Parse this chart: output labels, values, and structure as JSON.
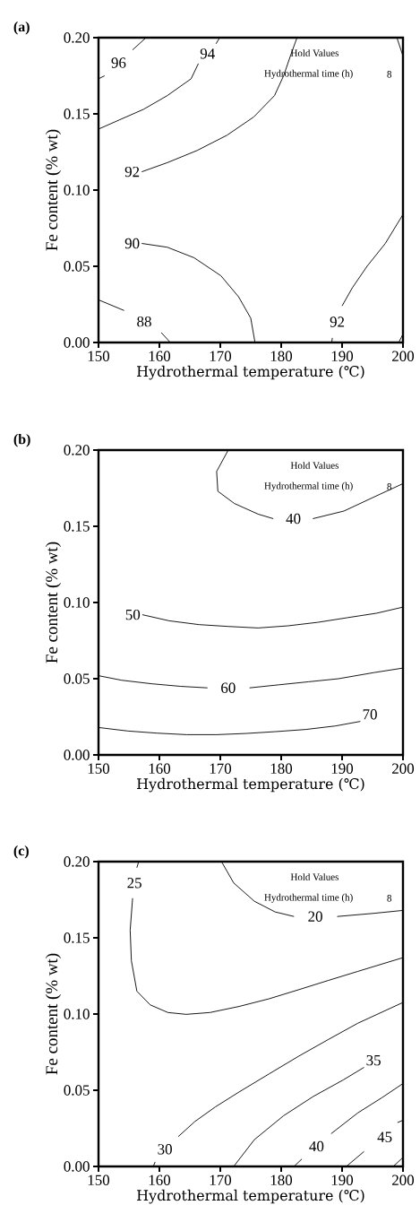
{
  "chart_data": [
    {
      "type": "line",
      "title": "(a)",
      "xlabel": "Hydrothermal temperature (℃)",
      "ylabel": "Fe content (% wt)",
      "annotations": [
        "Hold Values",
        "Hydrothermal time (h)",
        "8"
      ],
      "xlim": [
        150,
        200
      ],
      "ylim": [
        0,
        0.2
      ],
      "xticks": [
        150,
        160,
        170,
        180,
        190,
        200
      ],
      "yticks": [
        {
          "value": 0,
          "label": "0.00"
        },
        {
          "value": 0.05,
          "label": "0.05"
        },
        {
          "value": 0.1,
          "label": "0.10"
        },
        {
          "value": 0.15,
          "label": "0.15"
        },
        {
          "value": 0.2,
          "label": "0.20"
        }
      ],
      "series": [
        {
          "name": "96",
          "color": "#000000",
          "x": [
            150,
            151,
            153.3,
            155.6,
            157.8
          ],
          "values": [
            0.173,
            0.175,
            null,
            0.192,
            0.2
          ]
        },
        {
          "name": "94",
          "color": "#000000",
          "x": [
            150,
            153.4,
            157.4,
            161.3,
            165.2,
            166.4,
            167.9,
            169.3,
            169.9
          ],
          "values": [
            0.14,
            0.146,
            0.153,
            0.162,
            0.173,
            0.183,
            null,
            0.196,
            0.2
          ]
        },
        {
          "name": "92",
          "color": "#000000",
          "x": [
            157.1,
            161.3,
            166.2,
            171.1,
            175.5,
            178.9,
            180.4,
            181.6,
            182.6
          ],
          "values": [
            0.112,
            0.118,
            0.126,
            0.136,
            0.148,
            0.162,
            0.175,
            0.189,
            0.2
          ]
        },
        {
          "name": "90",
          "color": "#000000",
          "x": [
            157.1,
            161.3,
            165.7,
            170.1,
            173,
            175,
            175.7
          ],
          "values": [
            0.065,
            0.0625,
            0.0556,
            0.0438,
            0.03,
            0.016,
            0
          ]
        },
        {
          "name": "88",
          "color": "#000000",
          "x": [
            150,
            154.2,
            157.5,
            160.3,
            161.8
          ],
          "values": [
            0.028,
            0.021,
            null,
            0.0065,
            0
          ]
        },
        {
          "name": "92",
          "color": "#000000",
          "x": [
            188.3,
            188.4,
            189.2,
            190,
            191.7,
            194.1,
            197.1,
            200
          ],
          "values": [
            0,
            0.003,
            null,
            0.024,
            0.036,
            0.05,
            0.065,
            0.084
          ]
        },
        {
          "color": "#000000",
          "x": [
            199,
            200
          ],
          "values": [
            0.2,
            0.188
          ]
        },
        {
          "color": "#000000",
          "x": [
            199.3,
            200
          ],
          "values": [
            0,
            0.0055
          ]
        }
      ]
    },
    {
      "type": "line",
      "title": "(b)",
      "xlabel": "Hydrothermal temperature (℃)",
      "ylabel": "Fe content (% wt)",
      "annotations": [
        "Hold Values",
        "Hydrothermal time (h)",
        "8"
      ],
      "xlim": [
        150,
        200
      ],
      "ylim": [
        0,
        0.2
      ],
      "xticks": [
        150,
        160,
        170,
        180,
        190,
        200
      ],
      "yticks": [
        {
          "value": 0,
          "label": "0.00"
        },
        {
          "value": 0.05,
          "label": "0.05"
        },
        {
          "value": 0.1,
          "label": "0.10"
        },
        {
          "value": 0.15,
          "label": "0.15"
        },
        {
          "value": 0.2,
          "label": "0.20"
        }
      ],
      "series": [
        {
          "name": "40",
          "color": "#000000",
          "x": [
            171.3,
            169.4,
            169.6,
            172.3,
            176.2,
            178.7,
            182,
            185.2,
            190.3,
            196.2,
            200
          ],
          "values": [
            0.2,
            0.186,
            0.173,
            0.165,
            0.158,
            0.155,
            null,
            0.155,
            0.16,
            0.171,
            0.178
          ]
        },
        {
          "name": "50",
          "color": "#000000",
          "x": [
            157.2,
            161.6,
            166.5,
            171.3,
            176.2,
            181.1,
            186,
            190.8,
            195.7,
            200
          ],
          "values": [
            0.092,
            0.088,
            0.0855,
            0.0843,
            0.0833,
            0.0847,
            0.087,
            0.09,
            0.093,
            0.097
          ]
        },
        {
          "name": "60",
          "color": "#000000",
          "x": [
            150,
            153.8,
            158.7,
            163.5,
            167.9,
            171.3,
            174.8,
            179.6,
            184.5,
            189.4,
            195.2,
            200
          ],
          "values": [
            0.052,
            0.049,
            0.0467,
            0.045,
            0.044,
            null,
            0.044,
            0.046,
            0.048,
            0.05,
            0.054,
            0.057
          ]
        },
        {
          "name": "70",
          "color": "#000000",
          "x": [
            150,
            154.8,
            159.6,
            164.5,
            169.4,
            174.3,
            179.1,
            184,
            188.9,
            193
          ],
          "values": [
            0.018,
            0.0157,
            0.0143,
            0.0133,
            0.0133,
            0.0141,
            0.0153,
            0.0167,
            0.019,
            0.022
          ]
        }
      ]
    },
    {
      "type": "line",
      "title": "(c)",
      "xlabel": "Hydrothermal temperature (℃)",
      "ylabel": "Fe content (% wt)",
      "annotations": [
        "Hold Values",
        "Hydrothermal time (h)",
        "8"
      ],
      "xlim": [
        150,
        200
      ],
      "ylim": [
        0,
        0.2
      ],
      "xticks": [
        150,
        160,
        170,
        180,
        190,
        200
      ],
      "yticks": [
        {
          "value": 0,
          "label": "0.00"
        },
        {
          "value": 0.05,
          "label": "0.05"
        },
        {
          "value": 0.1,
          "label": "0.10"
        },
        {
          "value": 0.15,
          "label": "0.15"
        },
        {
          "value": 0.2,
          "label": "0.20"
        }
      ],
      "series": [
        {
          "name": "25",
          "color": "#000000",
          "x": [
            156.6,
            156.3,
            155.9,
            155.6,
            155.2,
            155.4,
            156.3,
            158.5,
            161.4,
            164.4,
            168.3,
            173.1,
            178,
            182.9,
            187.7,
            192.6,
            200
          ],
          "values": [
            0.2,
            0.196,
            null,
            0.176,
            0.155,
            0.135,
            0.115,
            0.106,
            0.101,
            0.0998,
            0.101,
            0.105,
            0.11,
            0.116,
            0.122,
            0.128,
            0.137
          ]
        },
        {
          "name": "20",
          "color": "#000000",
          "x": [
            170.2,
            172.2,
            175.6,
            179,
            182.1,
            185.6,
            189.2,
            195,
            200
          ],
          "values": [
            0.2,
            0.186,
            0.174,
            0.167,
            0.164,
            null,
            0.164,
            0.166,
            0.168
          ]
        },
        {
          "name": "30",
          "color": "#000000",
          "x": [
            159,
            159.3,
            160.9,
            163.1,
            165.8,
            169.2,
            173.1,
            178,
            182.9,
            187.7,
            192.6,
            200
          ],
          "values": [
            0,
            0.003,
            null,
            0.0196,
            0.0294,
            0.0391,
            0.0489,
            0.0607,
            0.0724,
            0.0832,
            0.094,
            0.1076
          ]
        },
        {
          "name": "35",
          "color": "#000000",
          "x": [
            172.2,
            175.6,
            180.4,
            185.3,
            190.2,
            193.6
          ],
          "values": [
            0,
            0.0176,
            0.0333,
            0.046,
            0.0568,
            0.065
          ]
        },
        {
          "name": "40",
          "color": "#000000",
          "x": [
            182.1,
            183.4,
            185.8,
            188.2,
            192.6,
            196.5,
            200
          ],
          "values": [
            0,
            0.0049,
            null,
            0.0215,
            0.0352,
            0.045,
            0.0544
          ]
        },
        {
          "name": "45",
          "color": "#000000",
          "x": [
            190.7,
            193.6,
            197,
            199.1,
            200
          ],
          "values": [
            0,
            0.0098,
            null,
            0.0288,
            0.0303
          ]
        },
        {
          "color": "#000000",
          "x": [
            198.4,
            200
          ],
          "values": [
            0,
            0.0059
          ]
        }
      ]
    }
  ]
}
